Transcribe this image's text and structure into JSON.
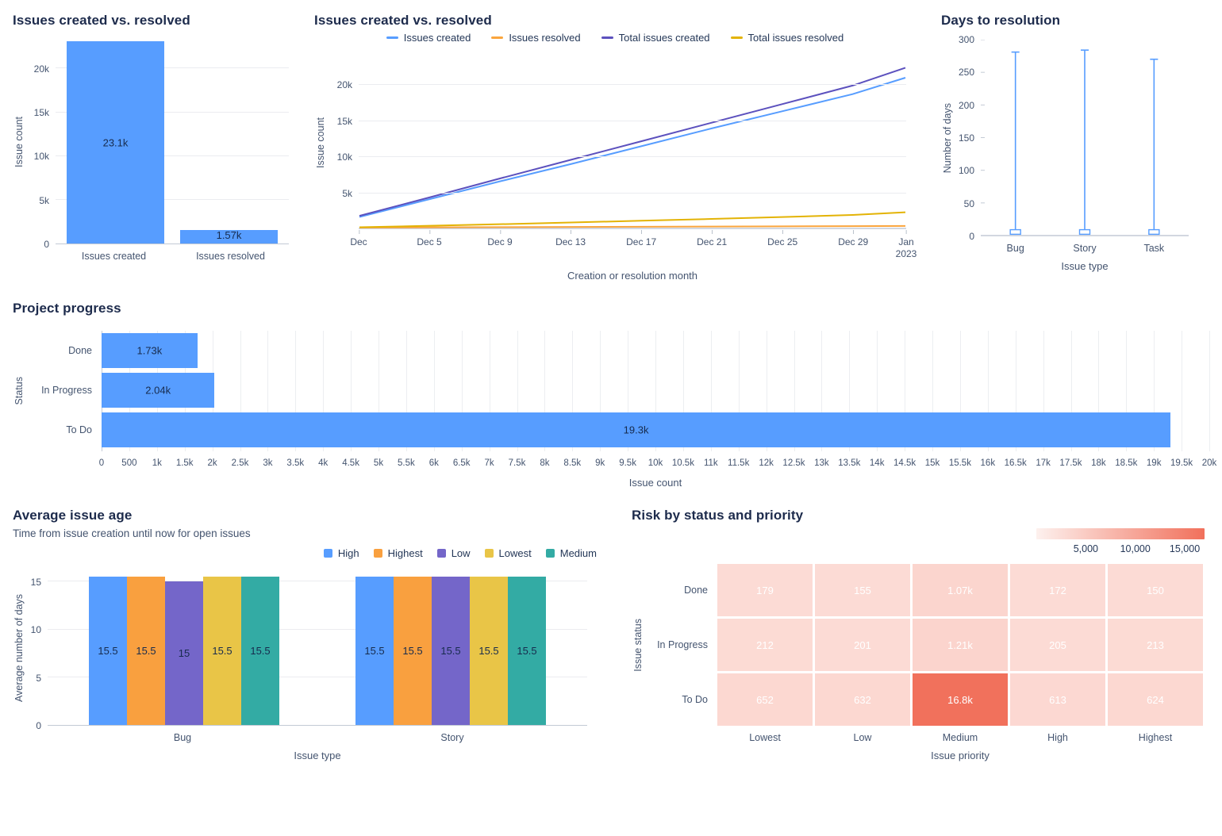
{
  "colors": {
    "accent_blue": "#579DFF",
    "orange": "#F9A03F",
    "purple": "#7466C9",
    "yellow": "#E9C547",
    "teal": "#33ABA4",
    "grid": "#EBECF0",
    "axis_line": "#C3CAD5",
    "title_text": "#1D2B4C",
    "axis_text": "#44546F",
    "heat_high": "#F1705B"
  },
  "chart_data": [
    {
      "type": "bar",
      "title": "Issues created vs. resolved",
      "ylabel": "Issue count",
      "categories": [
        "Issues created",
        "Issues resolved"
      ],
      "values": [
        23100,
        1570
      ],
      "value_labels": [
        "23.1k",
        "1.57k"
      ],
      "bar_color": "#579DFF",
      "ymax": 23300,
      "yticks": [
        {
          "v": 0,
          "label": "0"
        },
        {
          "v": 5000,
          "label": "5k"
        },
        {
          "v": 10000,
          "label": "10k"
        },
        {
          "v": 15000,
          "label": "15k"
        },
        {
          "v": 20000,
          "label": "20k"
        }
      ]
    },
    {
      "type": "line",
      "title": "Issues created vs. resolved",
      "xlabel": "Creation or resolution month",
      "ylabel": "Issue count",
      "ymax": 24000,
      "x_max": 31,
      "yticks": [
        {
          "v": 5000,
          "label": "5k"
        },
        {
          "v": 10000,
          "label": "10k"
        },
        {
          "v": 15000,
          "label": "15k"
        },
        {
          "v": 20000,
          "label": "20k"
        }
      ],
      "x_days": [
        0,
        4,
        8,
        12,
        16,
        20,
        24,
        28,
        31
      ],
      "xticks": [
        {
          "d": 0,
          "label": "Dec"
        },
        {
          "d": 4,
          "label": "Dec 5"
        },
        {
          "d": 8,
          "label": "Dec 9"
        },
        {
          "d": 12,
          "label": "Dec 13"
        },
        {
          "d": 16,
          "label": "Dec 17"
        },
        {
          "d": 20,
          "label": "Dec 21"
        },
        {
          "d": 24,
          "label": "Dec 25"
        },
        {
          "d": 28,
          "label": "Dec 29"
        },
        {
          "d": 31,
          "label": "Jan\n2023"
        }
      ],
      "series": [
        {
          "name": "Issues created",
          "color": "#579DFF",
          "values": [
            1500,
            4000,
            6500,
            8900,
            11400,
            13900,
            16300,
            18700,
            21000
          ]
        },
        {
          "name": "Issues resolved",
          "color": "#FAA53D",
          "values": [
            15,
            40,
            65,
            95,
            125,
            155,
            185,
            215,
            240
          ]
        },
        {
          "name": "Total issues created",
          "color": "#5C51BE",
          "values": [
            1650,
            4250,
            6900,
            9500,
            12100,
            14700,
            17300,
            19900,
            22400
          ]
        },
        {
          "name": "Total issues resolved",
          "color": "#E3B305",
          "values": [
            60,
            260,
            480,
            720,
            970,
            1220,
            1480,
            1780,
            2150
          ]
        }
      ]
    },
    {
      "type": "range",
      "title": "Days to resolution",
      "xlabel": "Issue type",
      "ylabel": "Number of days",
      "ymax": 300,
      "whisker_color": "#579DFF",
      "yticks": [
        {
          "v": 0,
          "label": "0"
        },
        {
          "v": 50,
          "label": "50"
        },
        {
          "v": 100,
          "label": "100"
        },
        {
          "v": 150,
          "label": "150"
        },
        {
          "v": 200,
          "label": "200"
        },
        {
          "v": 250,
          "label": "250"
        },
        {
          "v": 300,
          "label": "300"
        }
      ],
      "categories": [
        "Bug",
        "Story",
        "Task"
      ],
      "ranges": [
        {
          "min": 3,
          "max": 281,
          "box_low": 2,
          "box_high": 9
        },
        {
          "min": 3,
          "max": 284,
          "box_low": 2,
          "box_high": 9
        },
        {
          "min": 3,
          "max": 270,
          "box_low": 2,
          "box_high": 9
        }
      ]
    },
    {
      "type": "bar_horizontal",
      "title": "Project progress",
      "xlabel": "Issue count",
      "ylabel": "Status",
      "categories": [
        "Done",
        "In Progress",
        "To Do"
      ],
      "values": [
        1730,
        2040,
        19300
      ],
      "value_labels": [
        "1.73k",
        "2.04k",
        "19.3k"
      ],
      "bar_color": "#579DFF",
      "xmax": 20000,
      "xtick_labels": [
        "0",
        "500",
        "1k",
        "1.5k",
        "2k",
        "2.5k",
        "3k",
        "3.5k",
        "4k",
        "4.5k",
        "5k",
        "5.5k",
        "6k",
        "6.5k",
        "7k",
        "7.5k",
        "8k",
        "8.5k",
        "9k",
        "9.5k",
        "10k",
        "10.5k",
        "11k",
        "11.5k",
        "12k",
        "12.5k",
        "13k",
        "13.5k",
        "14k",
        "14.5k",
        "15k",
        "15.5k",
        "16k",
        "16.5k",
        "17k",
        "17.5k",
        "18k",
        "18.5k",
        "19k",
        "19.5k",
        "20k"
      ]
    },
    {
      "type": "grouped_bar",
      "title": "Average issue age",
      "subtitle": "Time from issue creation until now for open issues",
      "xlabel": "Issue type",
      "ylabel": "Average number of days",
      "categories": [
        "Bug",
        "Story"
      ],
      "ymax": 16.2,
      "yticks": [
        {
          "v": 0,
          "label": "0"
        },
        {
          "v": 5,
          "label": "5"
        },
        {
          "v": 10,
          "label": "10"
        },
        {
          "v": 15,
          "label": "15"
        }
      ],
      "series": [
        {
          "name": "High",
          "color": "#579DFF",
          "values": [
            15.5,
            15.5
          ],
          "labels": [
            "15.5",
            "15.5"
          ]
        },
        {
          "name": "Highest",
          "color": "#F9A03F",
          "values": [
            15.5,
            15.5
          ],
          "labels": [
            "15.5",
            "15.5"
          ]
        },
        {
          "name": "Low",
          "color": "#7466C9",
          "values": [
            15,
            15.5
          ],
          "labels": [
            "15",
            "15.5"
          ]
        },
        {
          "name": "Lowest",
          "color": "#E9C547",
          "values": [
            15.5,
            15.5
          ],
          "labels": [
            "15.5",
            "15.5"
          ]
        },
        {
          "name": "Medium",
          "color": "#33ABA4",
          "values": [
            15.5,
            15.5
          ],
          "labels": [
            "15.5",
            "15.5"
          ]
        }
      ]
    },
    {
      "type": "heatmap",
      "title": "Risk by status and priority",
      "xlabel": "Issue priority",
      "ylabel": "Issue status",
      "columns": [
        "Lowest",
        "Low",
        "Medium",
        "High",
        "Highest"
      ],
      "rows": [
        "Done",
        "In Progress",
        "To Do"
      ],
      "values": [
        [
          179,
          155,
          1070,
          172,
          150
        ],
        [
          212,
          201,
          1210,
          205,
          213
        ],
        [
          652,
          632,
          16800,
          613,
          624
        ]
      ],
      "value_labels": [
        [
          "179",
          "155",
          "1.07k",
          "172",
          "150"
        ],
        [
          "212",
          "201",
          "1.21k",
          "205",
          "213"
        ],
        [
          "652",
          "632",
          "16.8k",
          "613",
          "624"
        ]
      ],
      "scale_max": 17000,
      "cell_low_color": "#FCDCD6",
      "scale_high_color": "#F1705B",
      "legend_ticks": [
        {
          "v": 5000,
          "label": "5,000"
        },
        {
          "v": 10000,
          "label": "10,000"
        },
        {
          "v": 15000,
          "label": "15,000"
        }
      ]
    }
  ]
}
